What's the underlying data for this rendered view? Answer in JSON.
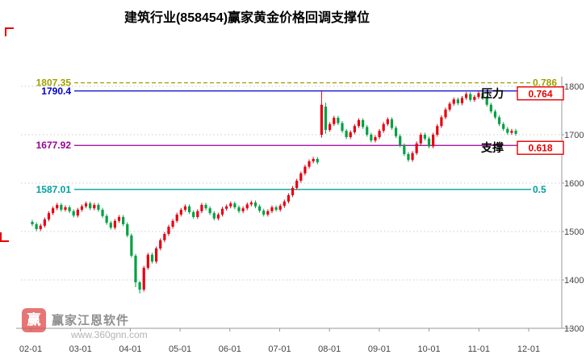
{
  "title": "建筑行业(858454)赢家黄金价格回调支撑位",
  "watermark": {
    "logo_glyph": "赢",
    "name": "赢家江恩软件",
    "url": "www.360gnn.com"
  },
  "chart_data": {
    "type": "candlestick",
    "title": "建筑行业(858454)赢家黄金价格回调支撑位",
    "x_ticks": [
      "02-01",
      "03-01",
      "04-01",
      "05-01",
      "06-01",
      "07-01",
      "08-01",
      "09-01",
      "10-01",
      "11-01",
      "12-01"
    ],
    "y_ticks": [
      1800,
      1700,
      1600,
      1500,
      1400,
      1300
    ],
    "ylim": [
      1300,
      1820
    ],
    "grid": "horizontal-dotted",
    "legend": "none",
    "up_color": "#e60012",
    "down_color": "#00a043",
    "box_color": "#e60000",
    "levels": [
      {
        "price": 1807.35,
        "left_label": "1807.35",
        "right_label": "0.786",
        "color": "#a0a000",
        "style": "dashed"
      },
      {
        "price": 1790.4,
        "left_label": "1790.4",
        "tag": "压力",
        "boxed_value": "0.764",
        "color": "#0000cc",
        "style": "solid"
      },
      {
        "price": 1677.92,
        "left_label": "1677.92",
        "tag": "支撑",
        "boxed_value": "0.618",
        "color": "#990099",
        "style": "solid"
      },
      {
        "price": 1587.01,
        "left_label": "1587.01",
        "right_label": "0.5",
        "color": "#00a0a0",
        "style": "solid"
      }
    ],
    "candles": [
      [
        1520,
        1524,
        1511,
        1515
      ],
      [
        1515,
        1519,
        1501,
        1505
      ],
      [
        1505,
        1516,
        1501,
        1512
      ],
      [
        1512,
        1529,
        1508,
        1525
      ],
      [
        1525,
        1542,
        1521,
        1538
      ],
      [
        1538,
        1552,
        1534,
        1548
      ],
      [
        1548,
        1559,
        1544,
        1555
      ],
      [
        1555,
        1559,
        1541,
        1545
      ],
      [
        1545,
        1554,
        1541,
        1550
      ],
      [
        1550,
        1554,
        1538,
        1542
      ],
      [
        1542,
        1546,
        1529,
        1533
      ],
      [
        1533,
        1549,
        1529,
        1545
      ],
      [
        1545,
        1556,
        1541,
        1552
      ],
      [
        1552,
        1562,
        1548,
        1558
      ],
      [
        1558,
        1562,
        1544,
        1548
      ],
      [
        1548,
        1559,
        1544,
        1555
      ],
      [
        1555,
        1559,
        1541,
        1545
      ],
      [
        1545,
        1549,
        1528,
        1532
      ],
      [
        1532,
        1536,
        1514,
        1518
      ],
      [
        1518,
        1522,
        1504,
        1508
      ],
      [
        1508,
        1526,
        1504,
        1522
      ],
      [
        1522,
        1534,
        1518,
        1530
      ],
      [
        1530,
        1534,
        1511,
        1515
      ],
      [
        1515,
        1519,
        1488,
        1492
      ],
      [
        1492,
        1496,
        1446,
        1450
      ],
      [
        1450,
        1454,
        1385,
        1395
      ],
      [
        1395,
        1398,
        1372,
        1380
      ],
      [
        1380,
        1429,
        1376,
        1425
      ],
      [
        1425,
        1456,
        1421,
        1452
      ],
      [
        1452,
        1456,
        1434,
        1438
      ],
      [
        1438,
        1469,
        1434,
        1465
      ],
      [
        1465,
        1486,
        1461,
        1482
      ],
      [
        1482,
        1499,
        1478,
        1495
      ],
      [
        1495,
        1514,
        1491,
        1510
      ],
      [
        1510,
        1526,
        1506,
        1522
      ],
      [
        1522,
        1539,
        1518,
        1535
      ],
      [
        1535,
        1549,
        1531,
        1545
      ],
      [
        1545,
        1556,
        1541,
        1552
      ],
      [
        1552,
        1556,
        1536,
        1540
      ],
      [
        1540,
        1544,
        1526,
        1530
      ],
      [
        1530,
        1546,
        1526,
        1542
      ],
      [
        1542,
        1559,
        1538,
        1555
      ],
      [
        1555,
        1559,
        1544,
        1548
      ],
      [
        1548,
        1552,
        1534,
        1538
      ],
      [
        1538,
        1542,
        1523,
        1527
      ],
      [
        1527,
        1539,
        1523,
        1535
      ],
      [
        1535,
        1551,
        1531,
        1547
      ],
      [
        1547,
        1556,
        1543,
        1552
      ],
      [
        1552,
        1562,
        1548,
        1558
      ],
      [
        1558,
        1562,
        1546,
        1550
      ],
      [
        1550,
        1554,
        1538,
        1542
      ],
      [
        1542,
        1552,
        1538,
        1548
      ],
      [
        1548,
        1560,
        1544,
        1556
      ],
      [
        1556,
        1564,
        1552,
        1560
      ],
      [
        1560,
        1564,
        1548,
        1552
      ],
      [
        1552,
        1556,
        1539,
        1543
      ],
      [
        1543,
        1547,
        1531,
        1535
      ],
      [
        1535,
        1546,
        1531,
        1542
      ],
      [
        1542,
        1554,
        1538,
        1550
      ],
      [
        1550,
        1554,
        1541,
        1545
      ],
      [
        1545,
        1557,
        1541,
        1553
      ],
      [
        1553,
        1566,
        1549,
        1562
      ],
      [
        1562,
        1579,
        1558,
        1575
      ],
      [
        1575,
        1594,
        1571,
        1590
      ],
      [
        1590,
        1609,
        1586,
        1605
      ],
      [
        1605,
        1624,
        1601,
        1620
      ],
      [
        1620,
        1638,
        1616,
        1634
      ],
      [
        1634,
        1649,
        1630,
        1645
      ],
      [
        1645,
        1654,
        1641,
        1650
      ],
      [
        1650,
        1654,
        1639,
        1643
      ],
      [
        1700,
        1790,
        1694,
        1762
      ],
      [
        1758,
        1766,
        1702,
        1710
      ],
      [
        1710,
        1726,
        1706,
        1722
      ],
      [
        1722,
        1739,
        1718,
        1735
      ],
      [
        1735,
        1739,
        1720,
        1724
      ],
      [
        1724,
        1728,
        1704,
        1708
      ],
      [
        1708,
        1712,
        1691,
        1695
      ],
      [
        1695,
        1709,
        1691,
        1705
      ],
      [
        1705,
        1722,
        1701,
        1718
      ],
      [
        1718,
        1734,
        1714,
        1730
      ],
      [
        1730,
        1734,
        1712,
        1716
      ],
      [
        1716,
        1720,
        1696,
        1700
      ],
      [
        1700,
        1704,
        1684,
        1688
      ],
      [
        1688,
        1699,
        1684,
        1695
      ],
      [
        1695,
        1712,
        1691,
        1708
      ],
      [
        1708,
        1726,
        1704,
        1722
      ],
      [
        1722,
        1736,
        1718,
        1732
      ],
      [
        1732,
        1736,
        1710,
        1714
      ],
      [
        1714,
        1718,
        1693,
        1697
      ],
      [
        1697,
        1701,
        1674,
        1678
      ],
      [
        1678,
        1682,
        1656,
        1660
      ],
      [
        1660,
        1664,
        1644,
        1648
      ],
      [
        1648,
        1666,
        1644,
        1662
      ],
      [
        1662,
        1686,
        1658,
        1682
      ],
      [
        1682,
        1704,
        1678,
        1700
      ],
      [
        1700,
        1704,
        1688,
        1692
      ],
      [
        1692,
        1696,
        1672,
        1676
      ],
      [
        1676,
        1704,
        1672,
        1700
      ],
      [
        1700,
        1722,
        1696,
        1718
      ],
      [
        1718,
        1740,
        1714,
        1736
      ],
      [
        1736,
        1756,
        1732,
        1752
      ],
      [
        1752,
        1768,
        1748,
        1764
      ],
      [
        1764,
        1777,
        1760,
        1773
      ],
      [
        1773,
        1777,
        1761,
        1765
      ],
      [
        1765,
        1780,
        1761,
        1776
      ],
      [
        1776,
        1788,
        1772,
        1784
      ],
      [
        1784,
        1788,
        1768,
        1772
      ],
      [
        1772,
        1782,
        1768,
        1778
      ],
      [
        1778,
        1789,
        1774,
        1786
      ],
      [
        1786,
        1790,
        1772,
        1776
      ],
      [
        1776,
        1780,
        1758,
        1762
      ],
      [
        1762,
        1766,
        1744,
        1748
      ],
      [
        1748,
        1752,
        1732,
        1736
      ],
      [
        1736,
        1740,
        1718,
        1722
      ],
      [
        1722,
        1726,
        1708,
        1712
      ],
      [
        1712,
        1716,
        1700,
        1704
      ],
      [
        1704,
        1712,
        1700,
        1708
      ],
      [
        1708,
        1712,
        1698,
        1702
      ]
    ]
  }
}
